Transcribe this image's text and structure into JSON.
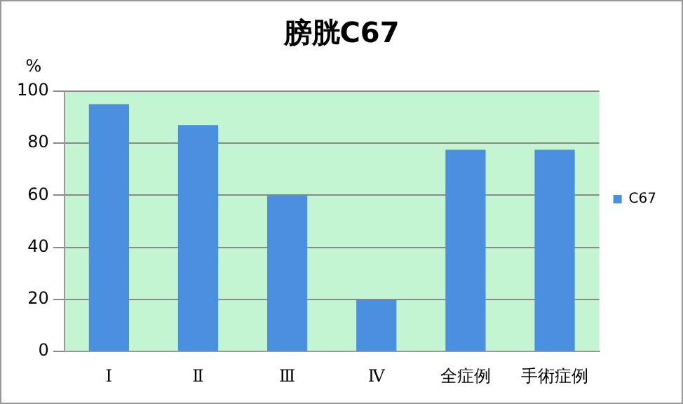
{
  "chart_data": {
    "type": "bar",
    "title": "膀胱C67",
    "ylabel": "%",
    "categories": [
      "Ⅰ",
      "Ⅱ",
      "Ⅲ",
      "Ⅳ",
      "全症例",
      "手術症例"
    ],
    "series": [
      {
        "name": "C67",
        "color": "#4a8fe0",
        "values": [
          95,
          87,
          60,
          20,
          77.5,
          77.5
        ]
      }
    ],
    "ylim": [
      0,
      100
    ],
    "yticks": [
      0,
      20,
      40,
      60,
      80,
      100
    ],
    "grid": "y",
    "legend": "right"
  }
}
